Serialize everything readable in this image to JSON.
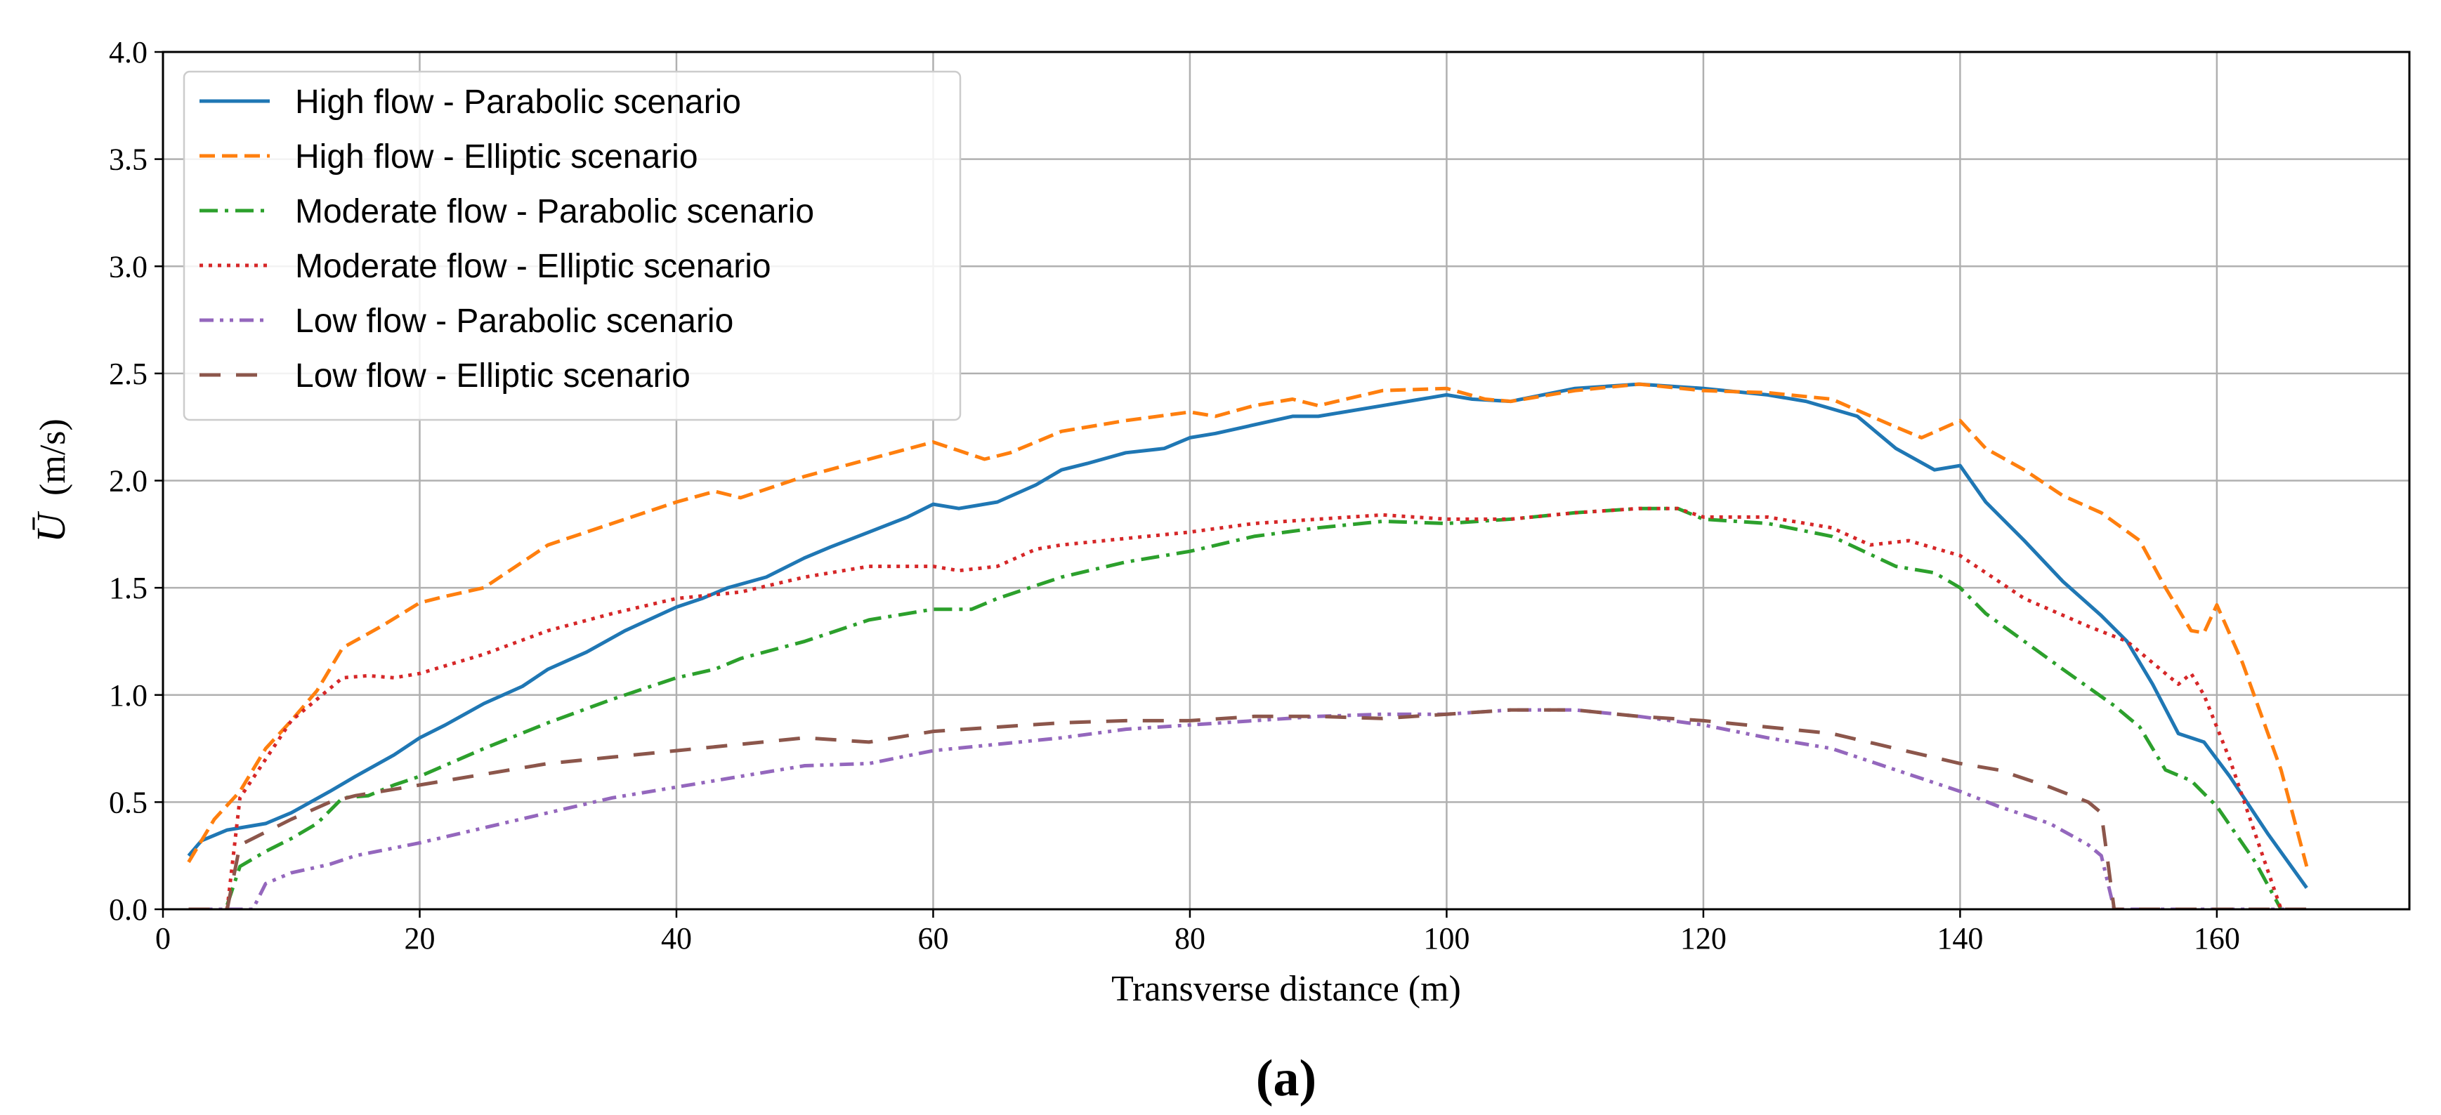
{
  "caption": "(a)",
  "chart_data": {
    "type": "line",
    "xlabel": "Transverse distance (m)",
    "ylabel_symbol": "Ū",
    "ylabel_unit": "(m/s)",
    "xlim": [
      0,
      175
    ],
    "ylim": [
      0,
      4.0
    ],
    "grid": true,
    "legend_position": "upper-left",
    "x_ticks": [
      0,
      20,
      40,
      60,
      80,
      100,
      120,
      140,
      160
    ],
    "x_tick_labels": [
      "0",
      "20",
      "40",
      "60",
      "80",
      "100",
      "120",
      "140",
      "160"
    ],
    "y_ticks": [
      0,
      0.5,
      1.0,
      1.5,
      2.0,
      2.5,
      3.0,
      3.5,
      4.0
    ],
    "y_tick_labels": [
      "0.0",
      "0.5",
      "1.0",
      "1.5",
      "2.0",
      "2.5",
      "3.0",
      "3.5",
      "4.0"
    ],
    "series": [
      {
        "name": "High flow - Parabolic scenario",
        "color": "#1f77b4",
        "dash": "solid",
        "x": [
          2,
          3,
          5,
          8,
          10,
          13,
          15,
          18,
          20,
          22,
          25,
          28,
          30,
          33,
          36,
          40,
          42,
          44,
          47,
          50,
          52,
          55,
          58,
          60,
          62,
          65,
          68,
          70,
          72,
          75,
          78,
          80,
          82,
          85,
          88,
          90,
          95,
          100,
          102,
          105,
          110,
          115,
          120,
          125,
          128,
          132,
          135,
          138,
          140,
          142,
          145,
          148,
          151,
          153,
          155,
          157,
          159,
          161,
          164,
          167
        ],
        "y": [
          0.25,
          0.32,
          0.37,
          0.4,
          0.45,
          0.55,
          0.62,
          0.72,
          0.8,
          0.86,
          0.96,
          1.04,
          1.12,
          1.2,
          1.3,
          1.41,
          1.45,
          1.5,
          1.55,
          1.64,
          1.69,
          1.76,
          1.83,
          1.89,
          1.87,
          1.9,
          1.98,
          2.05,
          2.08,
          2.13,
          2.15,
          2.2,
          2.22,
          2.26,
          2.3,
          2.3,
          2.35,
          2.4,
          2.38,
          2.37,
          2.43,
          2.45,
          2.43,
          2.4,
          2.37,
          2.3,
          2.15,
          2.05,
          2.07,
          1.9,
          1.72,
          1.53,
          1.37,
          1.25,
          1.05,
          0.82,
          0.78,
          0.62,
          0.35,
          0.1
        ]
      },
      {
        "name": "High flow - Elliptic scenario",
        "color": "#ff7f0e",
        "dash": "dashed",
        "x": [
          2,
          4,
          6,
          8,
          10,
          12,
          14,
          17,
          20,
          22,
          25,
          28,
          30,
          35,
          40,
          43,
          45,
          50,
          55,
          60,
          62,
          64,
          66,
          70,
          75,
          80,
          82,
          85,
          88,
          90,
          95,
          100,
          103,
          105,
          110,
          115,
          120,
          125,
          130,
          135,
          137,
          140,
          142,
          145,
          148,
          151,
          154,
          156,
          158,
          159,
          160,
          162,
          165,
          167
        ],
        "y": [
          0.22,
          0.42,
          0.55,
          0.75,
          0.88,
          1.02,
          1.22,
          1.32,
          1.43,
          1.46,
          1.5,
          1.62,
          1.7,
          1.8,
          1.9,
          1.95,
          1.92,
          2.02,
          2.1,
          2.18,
          2.14,
          2.1,
          2.13,
          2.23,
          2.28,
          2.32,
          2.3,
          2.35,
          2.38,
          2.35,
          2.42,
          2.43,
          2.38,
          2.37,
          2.42,
          2.45,
          2.42,
          2.41,
          2.38,
          2.25,
          2.2,
          2.28,
          2.15,
          2.05,
          1.93,
          1.85,
          1.72,
          1.5,
          1.3,
          1.29,
          1.42,
          1.15,
          0.65,
          0.2
        ]
      },
      {
        "name": "Moderate flow - Parabolic scenario",
        "color": "#2ca02c",
        "dash": "dashdot",
        "x": [
          5,
          6,
          8,
          10,
          12,
          14,
          16,
          18,
          20,
          25,
          30,
          35,
          40,
          43,
          45,
          50,
          55,
          60,
          63,
          65,
          70,
          75,
          80,
          85,
          90,
          95,
          100,
          105,
          110,
          115,
          118,
          120,
          125,
          130,
          135,
          138,
          140,
          142,
          145,
          148,
          152,
          154,
          156,
          158,
          160,
          163,
          165
        ],
        "y": [
          0.02,
          0.2,
          0.27,
          0.33,
          0.4,
          0.52,
          0.53,
          0.58,
          0.62,
          0.75,
          0.87,
          0.98,
          1.08,
          1.12,
          1.17,
          1.25,
          1.35,
          1.4,
          1.4,
          1.45,
          1.55,
          1.62,
          1.67,
          1.74,
          1.78,
          1.81,
          1.8,
          1.82,
          1.85,
          1.87,
          1.87,
          1.82,
          1.8,
          1.74,
          1.6,
          1.57,
          1.5,
          1.38,
          1.25,
          1.12,
          0.95,
          0.85,
          0.65,
          0.6,
          0.48,
          0.22,
          0.0
        ]
      },
      {
        "name": "Moderate flow - Elliptic scenario",
        "color": "#d62728",
        "dash": "dotted",
        "x": [
          5,
          6,
          8,
          10,
          12,
          14,
          16,
          18,
          20,
          25,
          30,
          35,
          40,
          45,
          50,
          55,
          60,
          62,
          65,
          68,
          70,
          75,
          80,
          85,
          90,
          95,
          100,
          105,
          110,
          115,
          118,
          120,
          125,
          130,
          133,
          136,
          140,
          145,
          150,
          153,
          155,
          157,
          158,
          159,
          161,
          163,
          165
        ],
        "y": [
          0.0,
          0.52,
          0.7,
          0.88,
          0.98,
          1.08,
          1.09,
          1.08,
          1.1,
          1.19,
          1.3,
          1.38,
          1.45,
          1.48,
          1.55,
          1.6,
          1.6,
          1.58,
          1.6,
          1.68,
          1.7,
          1.73,
          1.76,
          1.8,
          1.82,
          1.84,
          1.82,
          1.82,
          1.85,
          1.87,
          1.87,
          1.83,
          1.83,
          1.78,
          1.7,
          1.72,
          1.65,
          1.45,
          1.32,
          1.25,
          1.15,
          1.05,
          1.1,
          1.0,
          0.7,
          0.35,
          0.0
        ]
      },
      {
        "name": "Low flow - Parabolic scenario",
        "color": "#9467bd",
        "dash": "dashdotdot",
        "x": [
          2,
          5,
          7,
          8,
          10,
          13,
          15,
          20,
          25,
          30,
          35,
          40,
          45,
          50,
          55,
          60,
          65,
          70,
          75,
          80,
          85,
          90,
          95,
          100,
          105,
          110,
          115,
          120,
          125,
          130,
          135,
          140,
          143,
          147,
          150,
          151,
          152,
          153,
          158,
          162,
          167
        ],
        "y": [
          0.0,
          0.0,
          0.0,
          0.12,
          0.17,
          0.21,
          0.25,
          0.31,
          0.38,
          0.45,
          0.52,
          0.57,
          0.62,
          0.67,
          0.68,
          0.74,
          0.77,
          0.8,
          0.84,
          0.86,
          0.88,
          0.9,
          0.91,
          0.91,
          0.93,
          0.93,
          0.9,
          0.86,
          0.8,
          0.75,
          0.65,
          0.55,
          0.48,
          0.4,
          0.3,
          0.25,
          0.0,
          0.0,
          0.0,
          0.0,
          0.0
        ]
      },
      {
        "name": "Low flow - Elliptic scenario",
        "color": "#8c564b",
        "dash": "loosedash",
        "x": [
          2,
          5,
          6,
          8,
          10,
          13,
          15,
          20,
          25,
          30,
          35,
          40,
          45,
          50,
          55,
          60,
          65,
          70,
          75,
          80,
          85,
          90,
          95,
          100,
          105,
          110,
          115,
          120,
          125,
          130,
          135,
          140,
          143,
          147,
          150,
          151,
          152,
          153,
          158,
          162,
          167
        ],
        "y": [
          0.0,
          0.0,
          0.3,
          0.36,
          0.42,
          0.5,
          0.53,
          0.58,
          0.63,
          0.68,
          0.71,
          0.74,
          0.77,
          0.8,
          0.78,
          0.83,
          0.85,
          0.87,
          0.88,
          0.88,
          0.9,
          0.9,
          0.89,
          0.91,
          0.93,
          0.93,
          0.9,
          0.88,
          0.85,
          0.82,
          0.75,
          0.68,
          0.65,
          0.57,
          0.5,
          0.45,
          0.0,
          0.0,
          0.0,
          0.0,
          0.0
        ]
      }
    ]
  }
}
